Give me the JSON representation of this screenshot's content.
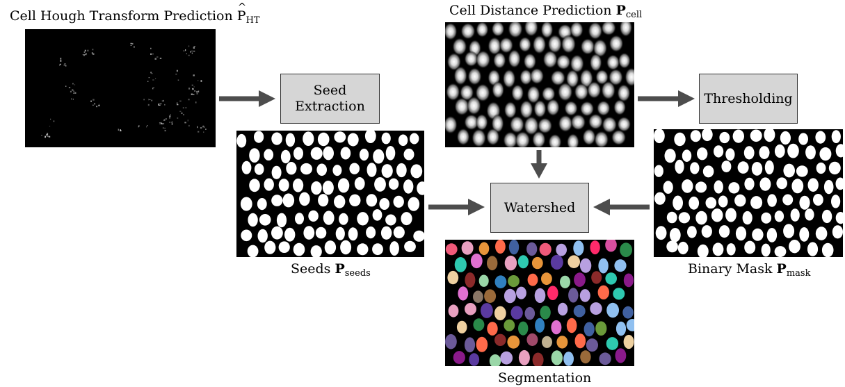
{
  "labels": {
    "hough": {
      "text": "Cell Hough Transform Prediction ",
      "symbol": "P",
      "sub": "HT"
    },
    "distance": {
      "text": "Cell Distance Prediction ",
      "symbol": "P",
      "sub": "cell"
    },
    "seeds": {
      "text": "Seeds ",
      "symbol": "P",
      "sub": "seeds"
    },
    "mask": {
      "text": "Binary Mask ",
      "symbol": "P",
      "sub": "mask"
    },
    "segmentation": {
      "text": "Segmentation"
    }
  },
  "boxes": {
    "seed_extraction": "Seed\nExtraction",
    "thresholding": "Thresholding",
    "watershed": "Watershed"
  },
  "colors": {
    "box_fill": "#d6d6d6",
    "arrow": "#4d4d4d",
    "panel_bg": "#000000"
  }
}
